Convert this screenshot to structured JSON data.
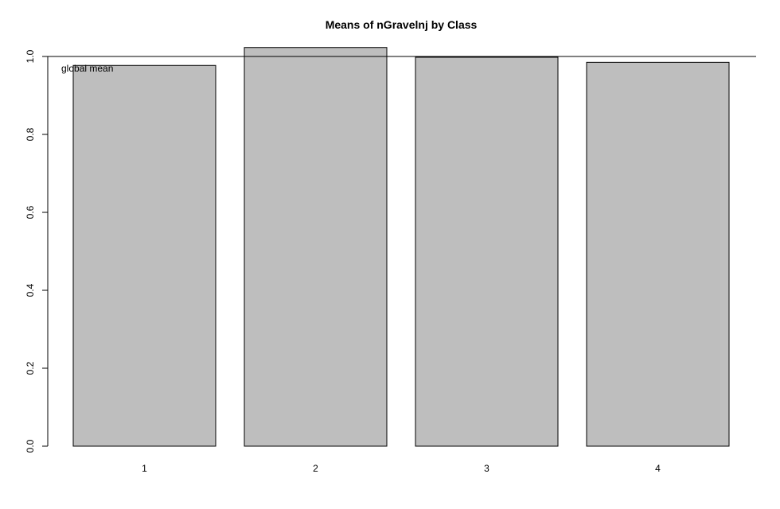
{
  "chart_data": {
    "type": "bar",
    "title": "Means of nGravelnj by Class",
    "xlabel": "",
    "ylabel": "",
    "categories": [
      "1",
      "2",
      "3",
      "4"
    ],
    "values": [
      0.977,
      1.023,
      0.998,
      0.985
    ],
    "ylim": [
      0,
      1.0
    ],
    "yticks": [
      "0.0",
      "0.2",
      "0.4",
      "0.6",
      "0.8",
      "1.0"
    ],
    "reference_line": {
      "value": 1.0,
      "label": "global mean"
    },
    "grid": false,
    "colors": {
      "bar_fill": "#bebebe",
      "bar_stroke": "#000000",
      "axis": "#000000"
    }
  }
}
